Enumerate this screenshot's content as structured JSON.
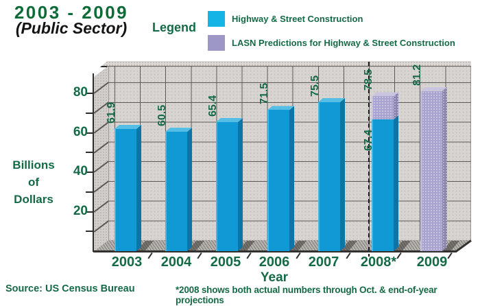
{
  "title": "2003 - 2009",
  "subtitle": "(Public Sector)",
  "legend": {
    "label": "Legend",
    "items": [
      {
        "label": "Highway & Street Construction",
        "color": "#15b4e6"
      },
      {
        "label": "LASN Predictions for Highway & Street Construction",
        "color": "#9d97c6"
      }
    ]
  },
  "y_axis": {
    "title_lines": [
      "Billions",
      "of",
      "Dollars"
    ],
    "tick_labels": [
      "80",
      "60",
      "40",
      "20"
    ]
  },
  "x_axis": {
    "title": "Year",
    "categories": [
      "2003",
      "2004",
      "2005",
      "2006",
      "2007",
      "2008*",
      "2009"
    ]
  },
  "footer": {
    "source": "Source: US Census Bureau",
    "note": "*2008 shows both actual numbers through Oct. & end-of-year projections"
  },
  "colors": {
    "text_green": "#156a46",
    "title_green": "#0e6b38",
    "bar_actual": "#1199d6",
    "bar_actual_highlight": "#4ab6e2",
    "bar_actual_top": "#56bde5",
    "bar_actual_side": "#0c74a6",
    "bar_prediction": "#a9a3cf",
    "bar_prediction_highlight": "#c9c5de",
    "bar_prediction_top": "#c9c5de",
    "bar_prediction_side": "#8b85ae",
    "wall": "#d8d4d1",
    "floor": "#b5b1ad",
    "grid": "#5c5a58",
    "separator": "#151515"
  },
  "chart_data": {
    "type": "bar",
    "style": "3d-column",
    "title": "2003 - 2009 (Public Sector)",
    "categories": [
      "2003",
      "2004",
      "2005",
      "2006",
      "2007",
      "2008*",
      "2009"
    ],
    "series": [
      {
        "name": "Highway & Street Construction",
        "values": [
          61.9,
          60.5,
          65.4,
          71.5,
          75.5,
          67.4,
          null
        ]
      },
      {
        "name": "LASN Predictions for Highway & Street Construction",
        "values": [
          null,
          null,
          null,
          null,
          null,
          78.5,
          81.2
        ]
      }
    ],
    "xlabel": "Year",
    "ylabel": "Billions of Dollars",
    "ylim": [
      0,
      90
    ],
    "ytick_labeled_interval": 20,
    "ytick_minor_interval": 10,
    "grid": true,
    "legend_position": "top",
    "separator_line_before_category": "2008*",
    "stacking_note": "For 2008* the actual value 67.4 is drawn as the lower (cyan) segment inside the prediction column whose total is 78.5; 2009 is prediction only"
  }
}
